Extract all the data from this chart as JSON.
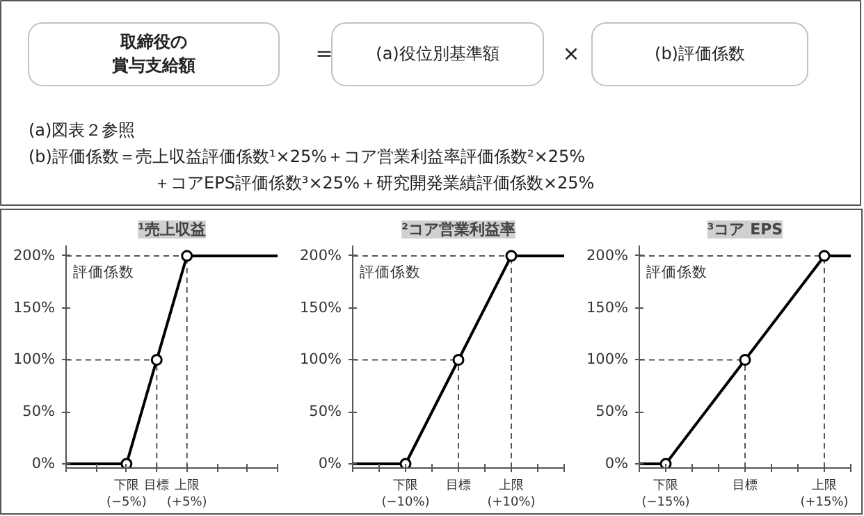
{
  "chart_data": [
    {
      "type": "other",
      "annotations": [
        "取締役の賞与支給額",
        "=",
        "(a)役位別基準額",
        "×",
        "(b)評価係数",
        "(a)図表２参照",
        "(b)評価係数＝売上収益評価係数¹×25%＋コア営業利益率評価係数²×25%",
        "＋コアEPS評価係数³×25%＋研究開発業績評価係数×25%"
      ]
    },
    {
      "type": "line",
      "title": "¹売上収益",
      "ylabel": "評価係数",
      "grid": false,
      "line_style": "solid",
      "marker": "none",
      "xlim": [
        -15,
        20
      ],
      "ylim": [
        -4,
        210
      ],
      "xticks": [
        {
          "value": -15,
          "label": null
        },
        {
          "value": -10,
          "label": null
        },
        {
          "value": -5,
          "label": "下限\n(−5%)"
        },
        {
          "value": 0,
          "label": "目標"
        },
        {
          "value": 5,
          "label": "上限\n(+5%)"
        },
        {
          "value": 10,
          "label": null
        },
        {
          "value": 15,
          "label": null
        },
        {
          "value": 20,
          "label": null
        }
      ],
      "yticks": [
        {
          "value": 0,
          "label": "0%"
        },
        {
          "value": 50,
          "label": "50%"
        },
        {
          "value": 100,
          "label": "100%"
        },
        {
          "value": 150,
          "label": "150%"
        },
        {
          "value": 200,
          "label": "200%"
        }
      ],
      "ref_lines": [
        {
          "axis": "y",
          "value": 100,
          "color": "#555555",
          "line_style": "dashed"
        },
        {
          "axis": "y",
          "value": 200,
          "color": "#555555",
          "line_style": "dashed"
        },
        {
          "axis": "x",
          "value": 0,
          "color": "#555555",
          "line_style": "dashed"
        },
        {
          "axis": "x",
          "value": 5,
          "color": "#555555",
          "line_style": "dashed"
        }
      ],
      "series": [
        {
          "type": "line",
          "color": "#000000",
          "x": [
            -15,
            -5,
            0,
            5,
            20
          ],
          "values": [
            0,
            0,
            100,
            200,
            200
          ]
        },
        {
          "type": "scatter",
          "marker": "circle",
          "color": "#000000",
          "x": [
            -5,
            0,
            5
          ],
          "values": [
            0,
            100,
            200
          ]
        }
      ]
    },
    {
      "type": "line",
      "title": "²コア営業利益率",
      "ylabel": "評価係数",
      "grid": false,
      "line_style": "solid",
      "marker": "none",
      "xlim": [
        -20,
        20
      ],
      "ylim": [
        -4,
        210
      ],
      "xticks": [
        {
          "value": -20,
          "label": null
        },
        {
          "value": -15,
          "label": null
        },
        {
          "value": -10,
          "label": "下限\n(−10%)"
        },
        {
          "value": -5,
          "label": null
        },
        {
          "value": 0,
          "label": "目標"
        },
        {
          "value": 5,
          "label": null
        },
        {
          "value": 10,
          "label": "上限\n(+10%)"
        },
        {
          "value": 15,
          "label": null
        },
        {
          "value": 20,
          "label": null
        }
      ],
      "yticks": [
        {
          "value": 0,
          "label": "0%"
        },
        {
          "value": 50,
          "label": "50%"
        },
        {
          "value": 100,
          "label": "100%"
        },
        {
          "value": 150,
          "label": "150%"
        },
        {
          "value": 200,
          "label": "200%"
        }
      ],
      "ref_lines": [
        {
          "axis": "y",
          "value": 100,
          "color": "#555555",
          "line_style": "dashed"
        },
        {
          "axis": "y",
          "value": 200,
          "color": "#555555",
          "line_style": "dashed"
        },
        {
          "axis": "x",
          "value": 0,
          "color": "#555555",
          "line_style": "dashed"
        },
        {
          "axis": "x",
          "value": 10,
          "color": "#555555",
          "line_style": "dashed"
        }
      ],
      "series": [
        {
          "type": "line",
          "color": "#000000",
          "x": [
            -20,
            -10,
            0,
            10,
            20
          ],
          "values": [
            0,
            0,
            100,
            200,
            200
          ]
        },
        {
          "type": "scatter",
          "marker": "circle",
          "color": "#000000",
          "x": [
            -10,
            0,
            10
          ],
          "values": [
            0,
            100,
            200
          ]
        }
      ]
    },
    {
      "type": "line",
      "title": "³コア EPS",
      "ylabel": "評価係数",
      "grid": false,
      "line_style": "solid",
      "marker": "none",
      "xlim": [
        -20,
        20
      ],
      "ylim": [
        -4,
        210
      ],
      "xticks": [
        {
          "value": -20,
          "label": null
        },
        {
          "value": -15,
          "label": "下限\n(−15%)"
        },
        {
          "value": -10,
          "label": null
        },
        {
          "value": -5,
          "label": null
        },
        {
          "value": 0,
          "label": "目標"
        },
        {
          "value": 5,
          "label": null
        },
        {
          "value": 10,
          "label": null
        },
        {
          "value": 15,
          "label": "上限\n(+15%)"
        },
        {
          "value": 20,
          "label": null
        }
      ],
      "yticks": [
        {
          "value": 0,
          "label": "0%"
        },
        {
          "value": 50,
          "label": "50%"
        },
        {
          "value": 100,
          "label": "100%"
        },
        {
          "value": 150,
          "label": "150%"
        },
        {
          "value": 200,
          "label": "200%"
        }
      ],
      "ref_lines": [
        {
          "axis": "y",
          "value": 100,
          "color": "#555555",
          "line_style": "dashed"
        },
        {
          "axis": "y",
          "value": 200,
          "color": "#555555",
          "line_style": "dashed"
        },
        {
          "axis": "x",
          "value": 0,
          "color": "#555555",
          "line_style": "dashed"
        },
        {
          "axis": "x",
          "value": 15,
          "color": "#555555",
          "line_style": "dashed"
        }
      ],
      "series": [
        {
          "type": "line",
          "color": "#000000",
          "x": [
            -20,
            -15,
            0,
            15,
            20
          ],
          "values": [
            0,
            0,
            100,
            200,
            200
          ]
        },
        {
          "type": "scatter",
          "marker": "circle",
          "color": "#000000",
          "x": [
            -15,
            0,
            15
          ],
          "values": [
            0,
            100,
            200
          ]
        }
      ]
    }
  ]
}
